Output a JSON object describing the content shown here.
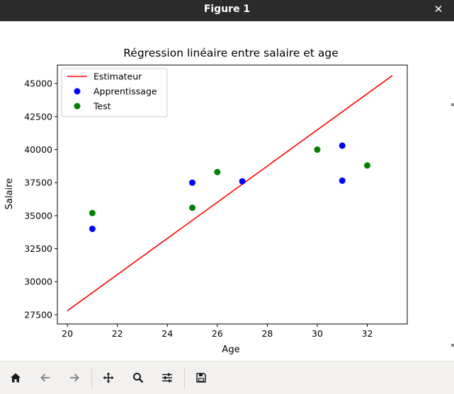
{
  "window": {
    "title": "Figure 1",
    "close_glyph": "✕"
  },
  "toolbar": {
    "buttons": [
      {
        "name": "home-button",
        "icon": "home-icon"
      },
      {
        "name": "back-button",
        "icon": "arrow-left-icon"
      },
      {
        "name": "forward-button",
        "icon": "arrow-right-icon"
      },
      {
        "name": "pan-button",
        "icon": "move-icon"
      },
      {
        "name": "zoom-button",
        "icon": "magnifier-icon"
      },
      {
        "name": "configure-subplots-button",
        "icon": "sliders-icon"
      },
      {
        "name": "save-button",
        "icon": "floppy-icon"
      }
    ]
  },
  "colors": {
    "estimator": "#ff0000",
    "train": "#0000ff",
    "test": "#008000"
  },
  "chart_data": {
    "type": "scatter",
    "title": "Régression linéaire entre salaire et age",
    "xlabel": "Age",
    "ylabel": "Salaire",
    "xlim": [
      19.6,
      33.6
    ],
    "ylim": [
      26800,
      46400
    ],
    "xticks": [
      20,
      22,
      24,
      26,
      28,
      30,
      32
    ],
    "yticks": [
      27500,
      30000,
      32500,
      35000,
      37500,
      40000,
      42500,
      45000
    ],
    "grid": false,
    "legend_position": "upper-left",
    "series": [
      {
        "name": "Estimateur",
        "kind": "line",
        "color": "#ff0000",
        "x": [
          20,
          33
        ],
        "y": [
          27800,
          45600
        ]
      },
      {
        "name": "Apprentissage",
        "kind": "scatter",
        "color": "#0000ff",
        "x": [
          21,
          25,
          27,
          31,
          31
        ],
        "y": [
          34000,
          37500,
          37600,
          40300,
          37650
        ]
      },
      {
        "name": "Test",
        "kind": "scatter",
        "color": "#008000",
        "x": [
          21,
          25,
          26,
          30,
          32
        ],
        "y": [
          35200,
          35600,
          38300,
          40000,
          38800
        ]
      }
    ]
  }
}
